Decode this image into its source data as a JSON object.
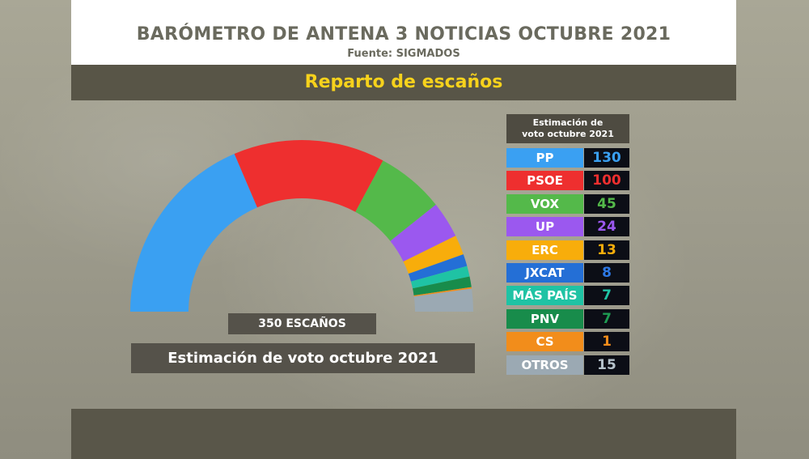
{
  "header": {
    "title": "BARÓMETRO DE ANTENA 3 NOTICIAS OCTUBRE 2021",
    "source": "Fuente: SIGMADOS"
  },
  "subtitle": "Reparto de escaños",
  "legend_title_line1": "Estimación de",
  "legend_title_line2": "voto octubre 2021",
  "seats_badge": "350 ESCAÑOS",
  "caption": "Estimación de voto octubre 2021",
  "chart_data": {
    "type": "pie",
    "variant": "parliament-hemicycle",
    "total": 350,
    "categories": [
      "PP",
      "PSOE",
      "VOX",
      "UP",
      "ERC",
      "JXCAT",
      "MÁS PAÍS",
      "PNV",
      "CS",
      "OTROS"
    ],
    "values": [
      130,
      100,
      45,
      24,
      13,
      8,
      7,
      7,
      1,
      15
    ],
    "colors": [
      "#3aa0f2",
      "#ee2f2f",
      "#54b94a",
      "#9b58ef",
      "#f8ad0b",
      "#246fd6",
      "#1fc3a4",
      "#188c4b",
      "#f28d1b",
      "#9ba9b3"
    ],
    "value_colors": [
      "#3aa0f2",
      "#ee2f2f",
      "#54b94a",
      "#9b58ef",
      "#f8ad0b",
      "#2d79e6",
      "#1fc3a4",
      "#1e9b52",
      "#f28d1b",
      "#b6c3cc"
    ]
  }
}
